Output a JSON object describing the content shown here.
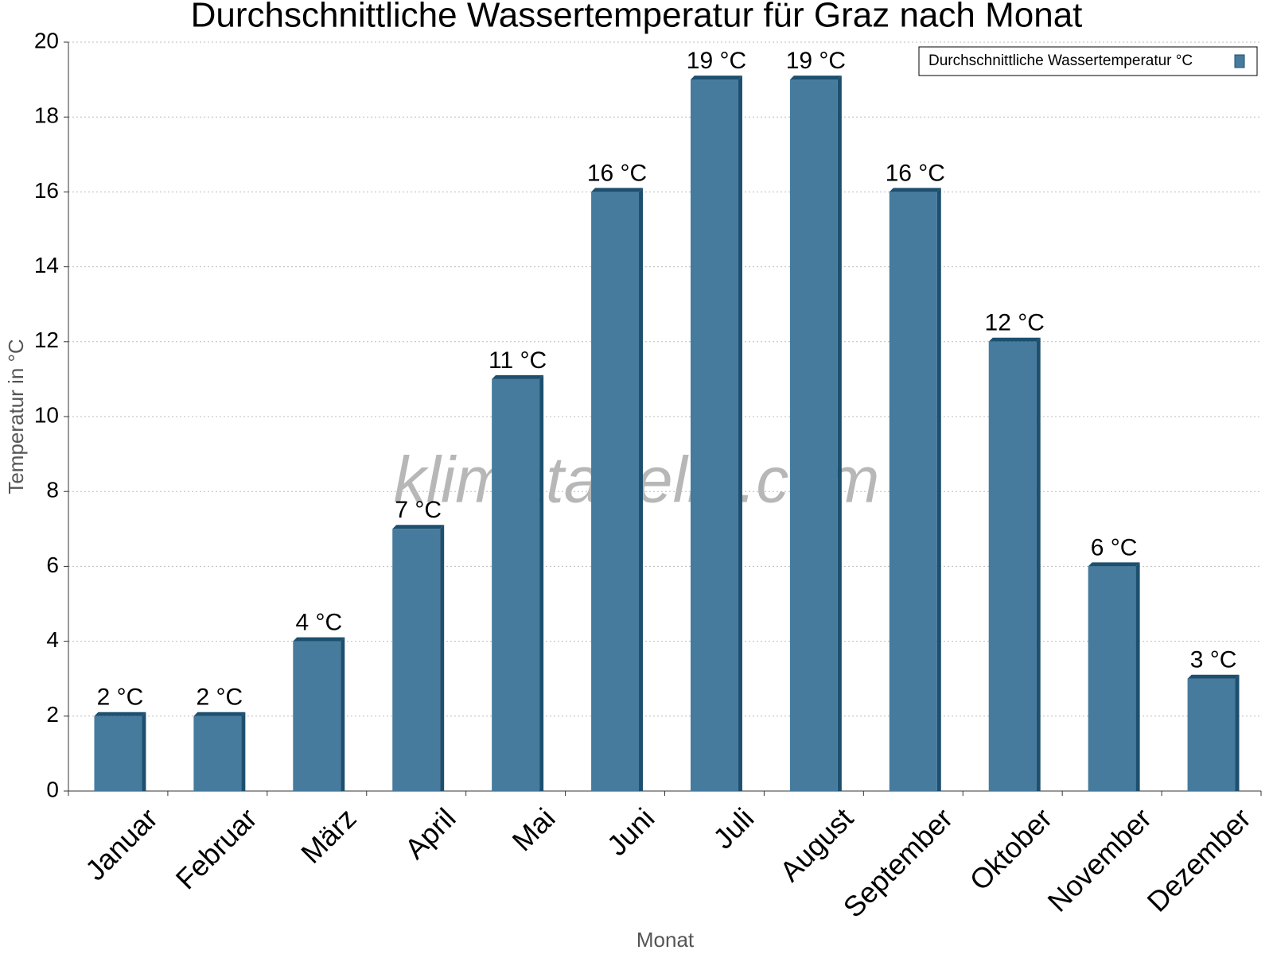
{
  "chart_data": {
    "type": "bar",
    "title": "Durchschnittliche Wassertemperatur für Graz nach Monat",
    "x_label": "Monat",
    "y_label": "Temperatur in °C",
    "watermark": "klimatabelle.com",
    "categories": [
      "Januar",
      "Februar",
      "März",
      "April",
      "Mai",
      "Juni",
      "Juli",
      "August",
      "September",
      "Oktober",
      "November",
      "Dezember"
    ],
    "series": [
      {
        "name": "Durchschnittliche Wassertemperatur °C",
        "color": "#467b9d",
        "values": [
          2,
          2,
          4,
          7,
          11,
          16,
          19,
          19,
          16,
          12,
          6,
          3
        ],
        "value_labels": [
          "2 °C",
          "2 °C",
          "4 °C",
          "7 °C",
          "11 °C",
          "16 °C",
          "19 °C",
          "19 °C",
          "16 °C",
          "12 °C",
          "6 °C",
          "3 °C"
        ]
      }
    ],
    "ylim": [
      0,
      20
    ],
    "yticks": [
      0,
      2,
      4,
      6,
      8,
      10,
      12,
      14,
      16,
      18,
      20
    ],
    "grid": true,
    "legend": "top-right"
  }
}
